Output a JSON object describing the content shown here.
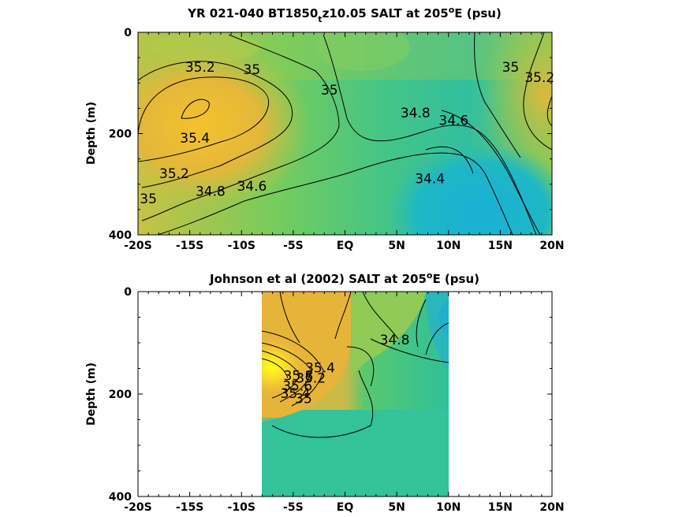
{
  "chart_data": [
    {
      "type": "heatmap",
      "title_parts": [
        "YR 021-040 BT1850",
        "t",
        "z10.05 SALT at 205",
        "o",
        "E (psu)"
      ],
      "ylabel": "Depth (m)",
      "x_tick_labels": [
        "-20S",
        "-15S",
        "-10S",
        "-5S",
        "EQ",
        "5N",
        "10N",
        "15N",
        "20N"
      ],
      "x_tick_values": [
        -20,
        -15,
        -10,
        -5,
        0,
        5,
        10,
        15,
        20
      ],
      "y_tick_labels": [
        "0",
        "200",
        "400"
      ],
      "y_tick_values": [
        0,
        200,
        400
      ],
      "xlim": [
        -20,
        20
      ],
      "ylim": [
        0,
        400
      ],
      "y_reversed": true,
      "data_extent": [
        -20,
        20
      ],
      "contour_labels": [
        {
          "text": "35.2",
          "x": -14,
          "y": 70
        },
        {
          "text": "35",
          "x": -9,
          "y": 75
        },
        {
          "text": "35",
          "x": -1.5,
          "y": 115
        },
        {
          "text": "34.8",
          "x": 6.8,
          "y": 160
        },
        {
          "text": "34.6",
          "x": 10.5,
          "y": 175
        },
        {
          "text": "35.4",
          "x": -14.5,
          "y": 210
        },
        {
          "text": "35.2",
          "x": -16.5,
          "y": 280
        },
        {
          "text": "35",
          "x": -19,
          "y": 330
        },
        {
          "text": "34.8",
          "x": -13,
          "y": 315
        },
        {
          "text": "34.6",
          "x": -9,
          "y": 305
        },
        {
          "text": "34.4",
          "x": 8.2,
          "y": 290
        },
        {
          "text": "35",
          "x": 16,
          "y": 70
        },
        {
          "text": "35.2",
          "x": 18.8,
          "y": 90
        }
      ]
    },
    {
      "type": "heatmap",
      "title_parts": [
        "Johnson et al (2002) SALT at 205",
        "o",
        "E (psu)"
      ],
      "ylabel": "Depth (m)",
      "x_tick_labels": [
        "-20S",
        "-15S",
        "-10S",
        "-5S",
        "EQ",
        "5N",
        "10N",
        "15N",
        "20N"
      ],
      "x_tick_values": [
        -20,
        -15,
        -10,
        -5,
        0,
        5,
        10,
        15,
        20
      ],
      "y_tick_labels": [
        "0",
        "200",
        "400"
      ],
      "y_tick_values": [
        0,
        200,
        400
      ],
      "xlim": [
        -20,
        20
      ],
      "ylim": [
        0,
        400
      ],
      "y_reversed": true,
      "data_extent": [
        -8,
        10
      ],
      "contour_labels": [
        {
          "text": "34.8",
          "x": 4.8,
          "y": 95
        },
        {
          "text": "35.4",
          "x": -2.4,
          "y": 150
        },
        {
          "text": "35.2",
          "x": -3.3,
          "y": 170
        },
        {
          "text": "35.8",
          "x": -4.5,
          "y": 165
        },
        {
          "text": "35.6",
          "x": -4.6,
          "y": 185
        },
        {
          "text": "35.4",
          "x": -4.8,
          "y": 200
        },
        {
          "text": "35",
          "x": -4,
          "y": 210
        }
      ]
    }
  ]
}
